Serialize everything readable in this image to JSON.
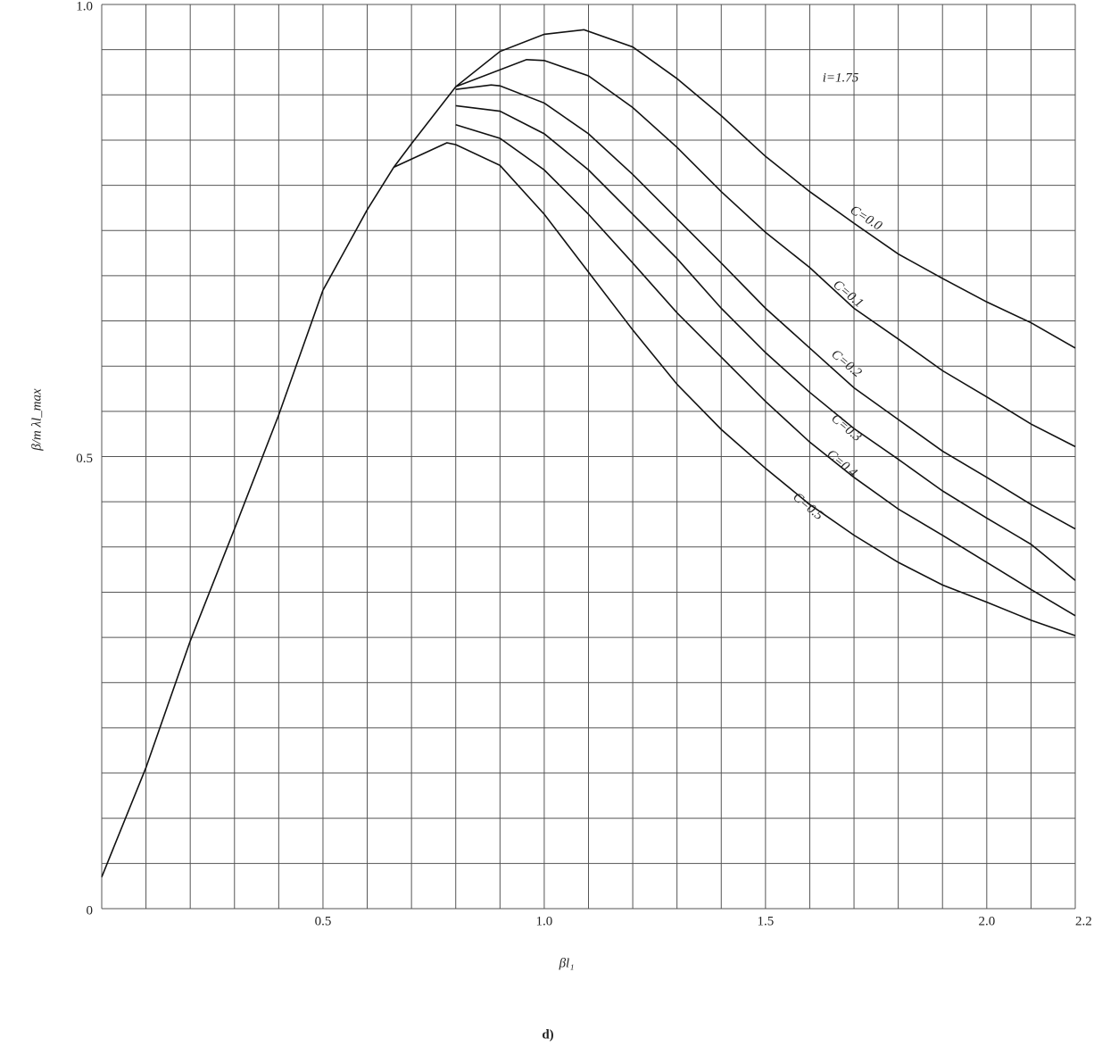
{
  "chart_data": {
    "type": "line",
    "x_label": "βl₁",
    "y_label": "β/m λl_max",
    "annotation": "i=1.75",
    "caption": "d)",
    "xlim": [
      0,
      2.2
    ],
    "ylim": [
      0,
      1
    ],
    "xticks": [
      0.5,
      {
        "value": 1,
        "label": "1.0"
      },
      1.5,
      {
        "value": 2,
        "label": "2.0"
      },
      2.2
    ],
    "yticks": [
      0,
      0.5,
      {
        "value": 1,
        "label": "1.0"
      }
    ],
    "grid": true,
    "xgrid_step": 0.1,
    "ygrid_step": 0.05,
    "series": [
      {
        "name": "C=0.0",
        "color": "#111111",
        "x": [
          0,
          0.1,
          0.2,
          0.3,
          0.4,
          0.5,
          0.6,
          0.66,
          0.7,
          0.8,
          0.9,
          1.0,
          1.09,
          1.2,
          1.3,
          1.4,
          1.5,
          1.6,
          1.7,
          1.8,
          1.9,
          2.0,
          2.1,
          2.2
        ],
        "values": [
          0.035,
          0.156,
          0.296,
          0.42,
          0.546,
          0.684,
          0.773,
          0.82,
          0.846,
          0.909,
          0.948,
          0.967,
          0.972,
          0.953,
          0.918,
          0.877,
          0.832,
          0.793,
          0.758,
          0.724,
          0.697,
          0.671,
          0.648,
          0.62
        ]
      },
      {
        "name": "C=0.1",
        "color": "#111111",
        "x": [
          0.8,
          0.96,
          1.0,
          1.1,
          1.2,
          1.3,
          1.4,
          1.5,
          1.6,
          1.7,
          1.8,
          1.9,
          2.0,
          2.1,
          2.2
        ],
        "values": [
          0.909,
          0.939,
          0.938,
          0.921,
          0.886,
          0.842,
          0.793,
          0.748,
          0.709,
          0.664,
          0.63,
          0.595,
          0.566,
          0.536,
          0.511
        ]
      },
      {
        "name": "C=0.2",
        "color": "#111111",
        "x": [
          0.8,
          0.88,
          0.9,
          1.0,
          1.1,
          1.2,
          1.3,
          1.4,
          1.5,
          1.6,
          1.7,
          1.8,
          1.9,
          2.0,
          2.1,
          2.2
        ],
        "values": [
          0.906,
          0.911,
          0.91,
          0.891,
          0.857,
          0.812,
          0.763,
          0.714,
          0.664,
          0.62,
          0.576,
          0.541,
          0.506,
          0.477,
          0.447,
          0.42
        ]
      },
      {
        "name": "C=0.3",
        "color": "#111111",
        "x": [
          0.8,
          0.9,
          1.0,
          1.1,
          1.2,
          1.3,
          1.4,
          1.5,
          1.6,
          1.7,
          1.8,
          1.9,
          2.0,
          2.1,
          2.2
        ],
        "values": [
          0.888,
          0.882,
          0.857,
          0.817,
          0.768,
          0.719,
          0.664,
          0.615,
          0.571,
          0.531,
          0.497,
          0.462,
          0.432,
          0.403,
          0.363
        ]
      },
      {
        "name": "C=0.4",
        "color": "#111111",
        "x": [
          0.8,
          0.9,
          1.0,
          1.1,
          1.2,
          1.3,
          1.4,
          1.5,
          1.6,
          1.7,
          1.8,
          1.9,
          2.0,
          2.1,
          2.2
        ],
        "values": [
          0.867,
          0.852,
          0.817,
          0.768,
          0.714,
          0.659,
          0.61,
          0.561,
          0.516,
          0.477,
          0.442,
          0.413,
          0.383,
          0.353,
          0.324
        ]
      },
      {
        "name": "C=0.5",
        "color": "#111111",
        "x": [
          0.66,
          0.78,
          0.8,
          0.9,
          1.0,
          1.1,
          1.2,
          1.3,
          1.4,
          1.5,
          1.6,
          1.7,
          1.8,
          1.9,
          2.0,
          2.1,
          2.2
        ],
        "values": [
          0.82,
          0.847,
          0.845,
          0.822,
          0.768,
          0.704,
          0.64,
          0.58,
          0.53,
          0.487,
          0.447,
          0.413,
          0.383,
          0.358,
          0.339,
          0.319,
          0.302
        ]
      }
    ]
  }
}
